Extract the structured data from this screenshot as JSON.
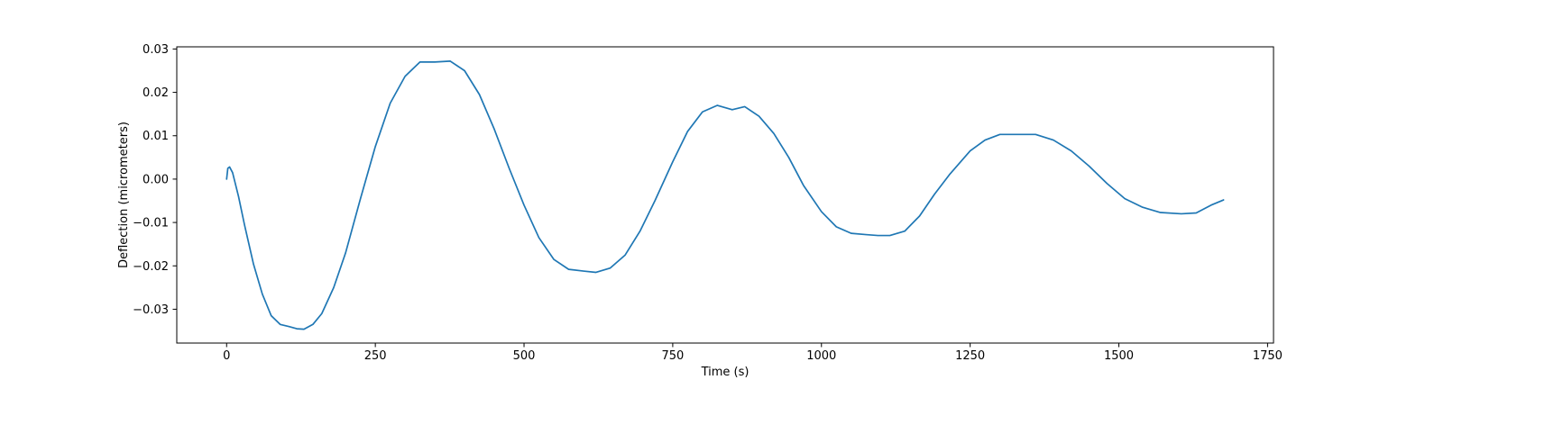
{
  "chart_data": {
    "type": "line",
    "title": "",
    "xlabel": "Time (s)",
    "ylabel": "Deflection (micrometers)",
    "xlim": [
      -83.8,
      1760
    ],
    "ylim": [
      -0.0378,
      0.0305
    ],
    "xticks": [
      0,
      250,
      500,
      750,
      1000,
      1250,
      1500,
      1750
    ],
    "xtick_labels": [
      "0",
      "250",
      "500",
      "750",
      "1000",
      "1250",
      "1500",
      "1750"
    ],
    "yticks": [
      -0.03,
      -0.02,
      -0.01,
      0.0,
      0.01,
      0.02,
      0.03
    ],
    "ytick_labels": [
      "−0.03",
      "−0.02",
      "−0.01",
      "0.00",
      "0.01",
      "0.02",
      "0.03"
    ],
    "grid": false,
    "legend": "none",
    "series": [
      {
        "color": "#1f77b4",
        "x": [
          0,
          2,
          5,
          10,
          20,
          30,
          45,
          60,
          75,
          90,
          105,
          118,
          130,
          145,
          160,
          180,
          200,
          225,
          250,
          275,
          300,
          325,
          350,
          376,
          400,
          425,
          450,
          475,
          500,
          525,
          550,
          575,
          600,
          621,
          645,
          670,
          695,
          720,
          750,
          775,
          800,
          825,
          850,
          871,
          895,
          920,
          945,
          970,
          1000,
          1025,
          1050,
          1075,
          1095,
          1115,
          1140,
          1165,
          1190,
          1215,
          1250,
          1275,
          1300,
          1330,
          1360,
          1390,
          1420,
          1450,
          1480,
          1510,
          1540,
          1570,
          1605,
          1630,
          1655,
          1676
        ],
        "y": [
          0.0,
          0.0025,
          0.0028,
          0.0015,
          -0.004,
          -0.0105,
          -0.0195,
          -0.0265,
          -0.0315,
          -0.0335,
          -0.034,
          -0.0345,
          -0.0346,
          -0.0335,
          -0.031,
          -0.025,
          -0.017,
          -0.0045,
          0.0075,
          0.0175,
          0.0237,
          0.027,
          0.027,
          0.0272,
          0.025,
          0.0195,
          0.0115,
          0.0025,
          -0.006,
          -0.0135,
          -0.0185,
          -0.0208,
          -0.0212,
          -0.0215,
          -0.0205,
          -0.0175,
          -0.012,
          -0.005,
          0.004,
          0.011,
          0.0155,
          0.017,
          0.016,
          0.0167,
          0.0145,
          0.0105,
          0.005,
          -0.0015,
          -0.0075,
          -0.011,
          -0.0125,
          -0.0128,
          -0.013,
          -0.013,
          -0.012,
          -0.0085,
          -0.0035,
          0.001,
          0.0065,
          0.009,
          0.0103,
          0.0103,
          0.0103,
          0.009,
          0.0065,
          0.003,
          -0.001,
          -0.0045,
          -0.0065,
          -0.0077,
          -0.008,
          -0.0078,
          -0.006,
          -0.0048
        ]
      }
    ]
  }
}
